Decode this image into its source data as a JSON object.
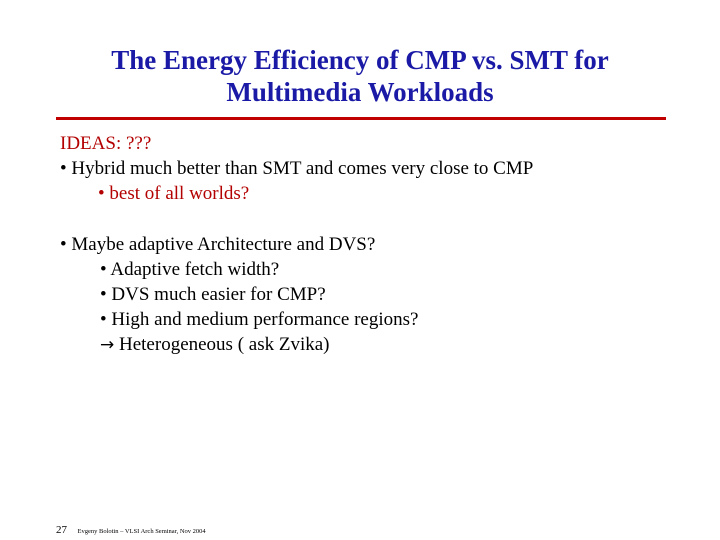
{
  "slide": {
    "title_line1": "The Energy Efficiency of CMP vs. SMT for",
    "title_line2": "Multimedia Workloads",
    "ideas": "IDEAS:  ???",
    "bullet1": "• Hybrid much better than SMT and comes very close to CMP",
    "bullet1_sub": "• best of all worlds?",
    "bullet2": "• Maybe adaptive Architecture and DVS?",
    "bullet2_subs": [
      "• Adaptive fetch width?",
      "• DVS much easier for CMP?",
      "• High and medium performance regions?"
    ],
    "arrow_symbol": "→",
    "arrow_text": " Heterogeneous ( ask Zvika)"
  },
  "footer": {
    "page_number": "27",
    "credit": "Evgeny Bolotin – VLSI Arch Seminar, Nov 2004"
  },
  "colors": {
    "title": "#1a1aa6",
    "accent_red": "#b30000",
    "rule": "#c00000"
  }
}
